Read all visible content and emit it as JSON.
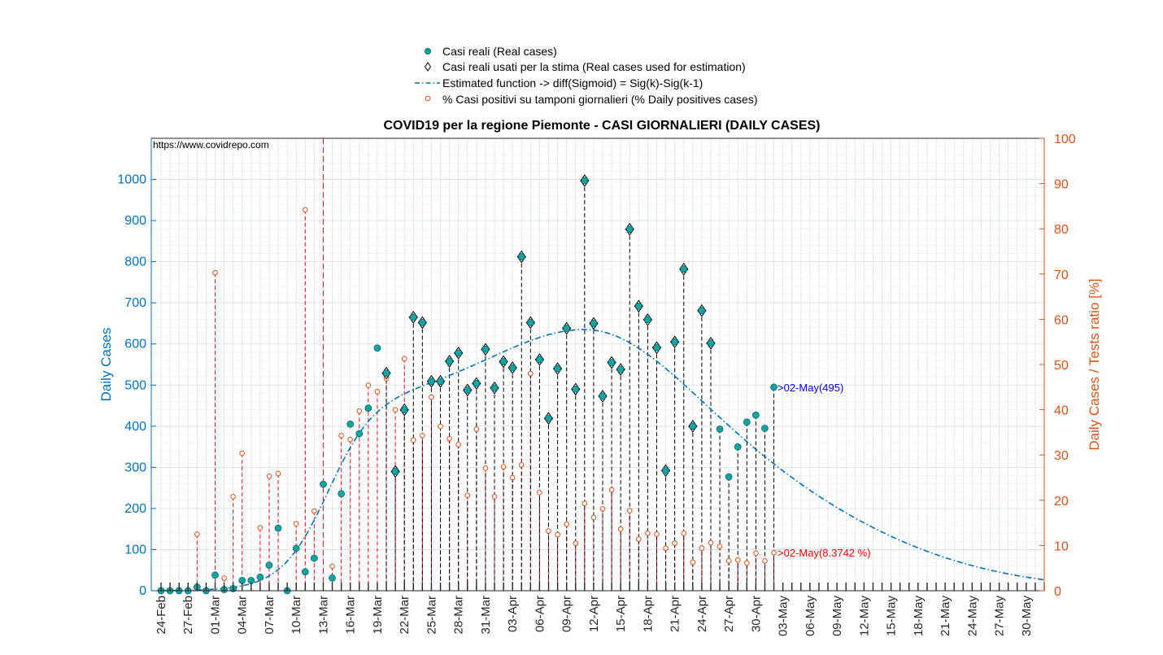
{
  "chart_data": {
    "type": "scatter",
    "title": "COVID19 per la regione Piemonte - CASI GIORNALIERI (DAILY CASES)",
    "watermark": "https://www.covidrepo.com",
    "ylabel_left": "Daily Cases",
    "ylabel_right": "Daily Cases / Tests ratio [%]",
    "ylim_left": [
      0,
      1100
    ],
    "ylim_right": [
      0,
      100
    ],
    "yticks_left": [
      "0",
      "100",
      "200",
      "300",
      "400",
      "500",
      "600",
      "700",
      "800",
      "900",
      "1000"
    ],
    "yticks_right": [
      "0",
      "10",
      "20",
      "30",
      "40",
      "50",
      "60",
      "70",
      "80",
      "90",
      "100"
    ],
    "x_start_date": "24-Feb",
    "x_tick_labels": [
      "24-Feb",
      "27-Feb",
      "01-Mar",
      "04-Mar",
      "07-Mar",
      "10-Mar",
      "13-Mar",
      "16-Mar",
      "19-Mar",
      "22-Mar",
      "25-Mar",
      "28-Mar",
      "31-Mar",
      "03-Apr",
      "06-Apr",
      "09-Apr",
      "12-Apr",
      "15-Apr",
      "18-Apr",
      "21-Apr",
      "24-Apr",
      "27-Apr",
      "30-Apr",
      "03-May",
      "06-May",
      "09-May",
      "12-May",
      "15-May",
      "18-May",
      "21-May",
      "24-May",
      "27-May",
      "30-May"
    ],
    "legend": {
      "placement": "top-center",
      "entries": [
        "Casi reali (Real cases)",
        "Casi reali usati per la stima (Real cases used for estimation)",
        "Estimated function -> diff(Sigmoid) = Sig(k)-Sig(k-1)",
        "% Casi positivi su tamponi giornalieri (% Daily positives cases)"
      ]
    },
    "annotations": {
      "cases_last": ">02-May(495)",
      "ratio_last": ">02-May(8.3742 %)"
    },
    "real_cases": [
      0,
      0,
      0,
      0,
      9,
      0,
      38,
      3,
      5,
      25,
      25,
      33,
      62,
      152,
      0,
      103,
      46,
      79,
      259,
      31,
      236,
      405,
      382,
      444,
      590,
      529,
      290,
      440,
      665,
      652,
      509,
      509,
      558,
      578,
      488,
      504,
      587,
      493,
      557,
      542,
      812,
      652,
      562,
      419,
      540,
      638,
      490,
      997,
      650,
      473,
      555,
      538,
      879,
      692,
      659,
      591,
      292,
      605,
      782,
      400,
      681,
      602,
      393,
      277,
      350,
      410,
      427,
      395,
      495
    ],
    "estimation_start_index": 25,
    "ratio_percent": [
      null,
      null,
      null,
      null,
      12.5,
      null,
      70.3,
      2.8,
      20.8,
      30.4,
      null,
      13.9,
      25.3,
      25.9,
      null,
      14.8,
      84.2,
      17.6,
      null,
      5.4,
      34.3,
      33.4,
      39.7,
      45.4,
      44.0,
      46.9,
      40.0,
      51.3,
      33.3,
      34.3,
      42.8,
      36.3,
      33.6,
      32.3,
      21.1,
      35.7,
      27.1,
      20.8,
      27.4,
      25.0,
      27.8,
      48.0,
      21.7,
      13.2,
      12.4,
      14.7,
      10.5,
      19.3,
      16.2,
      18.1,
      22.3,
      13.6,
      17.7,
      11.4,
      12.7,
      12.5,
      9.4,
      10.5,
      12.7,
      6.3,
      9.4,
      10.6,
      9.8,
      6.6,
      6.8,
      6.1,
      8.3,
      6.6,
      8.4
    ],
    "sigmoid": {
      "peak": 635,
      "center_day": 50.5,
      "left_width": 3.2,
      "right_width": 22,
      "mix_width": 6,
      "end_day": 98
    }
  }
}
